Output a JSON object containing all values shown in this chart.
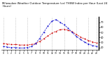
{
  "title": "Milwaukee Weather Outdoor Temperature (vs) THSW Index per Hour (Last 24 Hours)",
  "title_fontsize": 2.8,
  "background_color": "#ffffff",
  "grid_color": "#aaaaaa",
  "hours": [
    0,
    1,
    2,
    3,
    4,
    5,
    6,
    7,
    8,
    9,
    10,
    11,
    12,
    13,
    14,
    15,
    16,
    17,
    18,
    19,
    20,
    21,
    22,
    23
  ],
  "temp": [
    28,
    27,
    26,
    26,
    25,
    25,
    25,
    26,
    28,
    32,
    37,
    43,
    48,
    52,
    55,
    56,
    54,
    51,
    46,
    41,
    37,
    34,
    31,
    29
  ],
  "thsw": [
    22,
    21,
    20,
    20,
    19,
    19,
    20,
    22,
    28,
    38,
    50,
    62,
    72,
    75,
    70,
    65,
    58,
    50,
    42,
    36,
    31,
    27,
    24,
    22
  ],
  "temp_color": "#cc0000",
  "thsw_color": "#0000cc",
  "ylim": [
    15,
    80
  ],
  "yticks_right": [
    20,
    30,
    40,
    50,
    60,
    70
  ],
  "ytick_fontsize": 2.5,
  "xtick_labels": [
    "0",
    "1",
    "2",
    "3",
    "4",
    "5",
    "6",
    "7",
    "8",
    "9",
    "10",
    "11",
    "12",
    "13",
    "14",
    "15",
    "16",
    "17",
    "18",
    "19",
    "20",
    "21",
    "22",
    "23"
  ],
  "xtick_fontsize": 2.2,
  "dot_size": 1.2,
  "line_width": 0.5,
  "grid_hours": [
    0,
    3,
    6,
    9,
    12,
    15,
    18,
    21,
    23
  ]
}
